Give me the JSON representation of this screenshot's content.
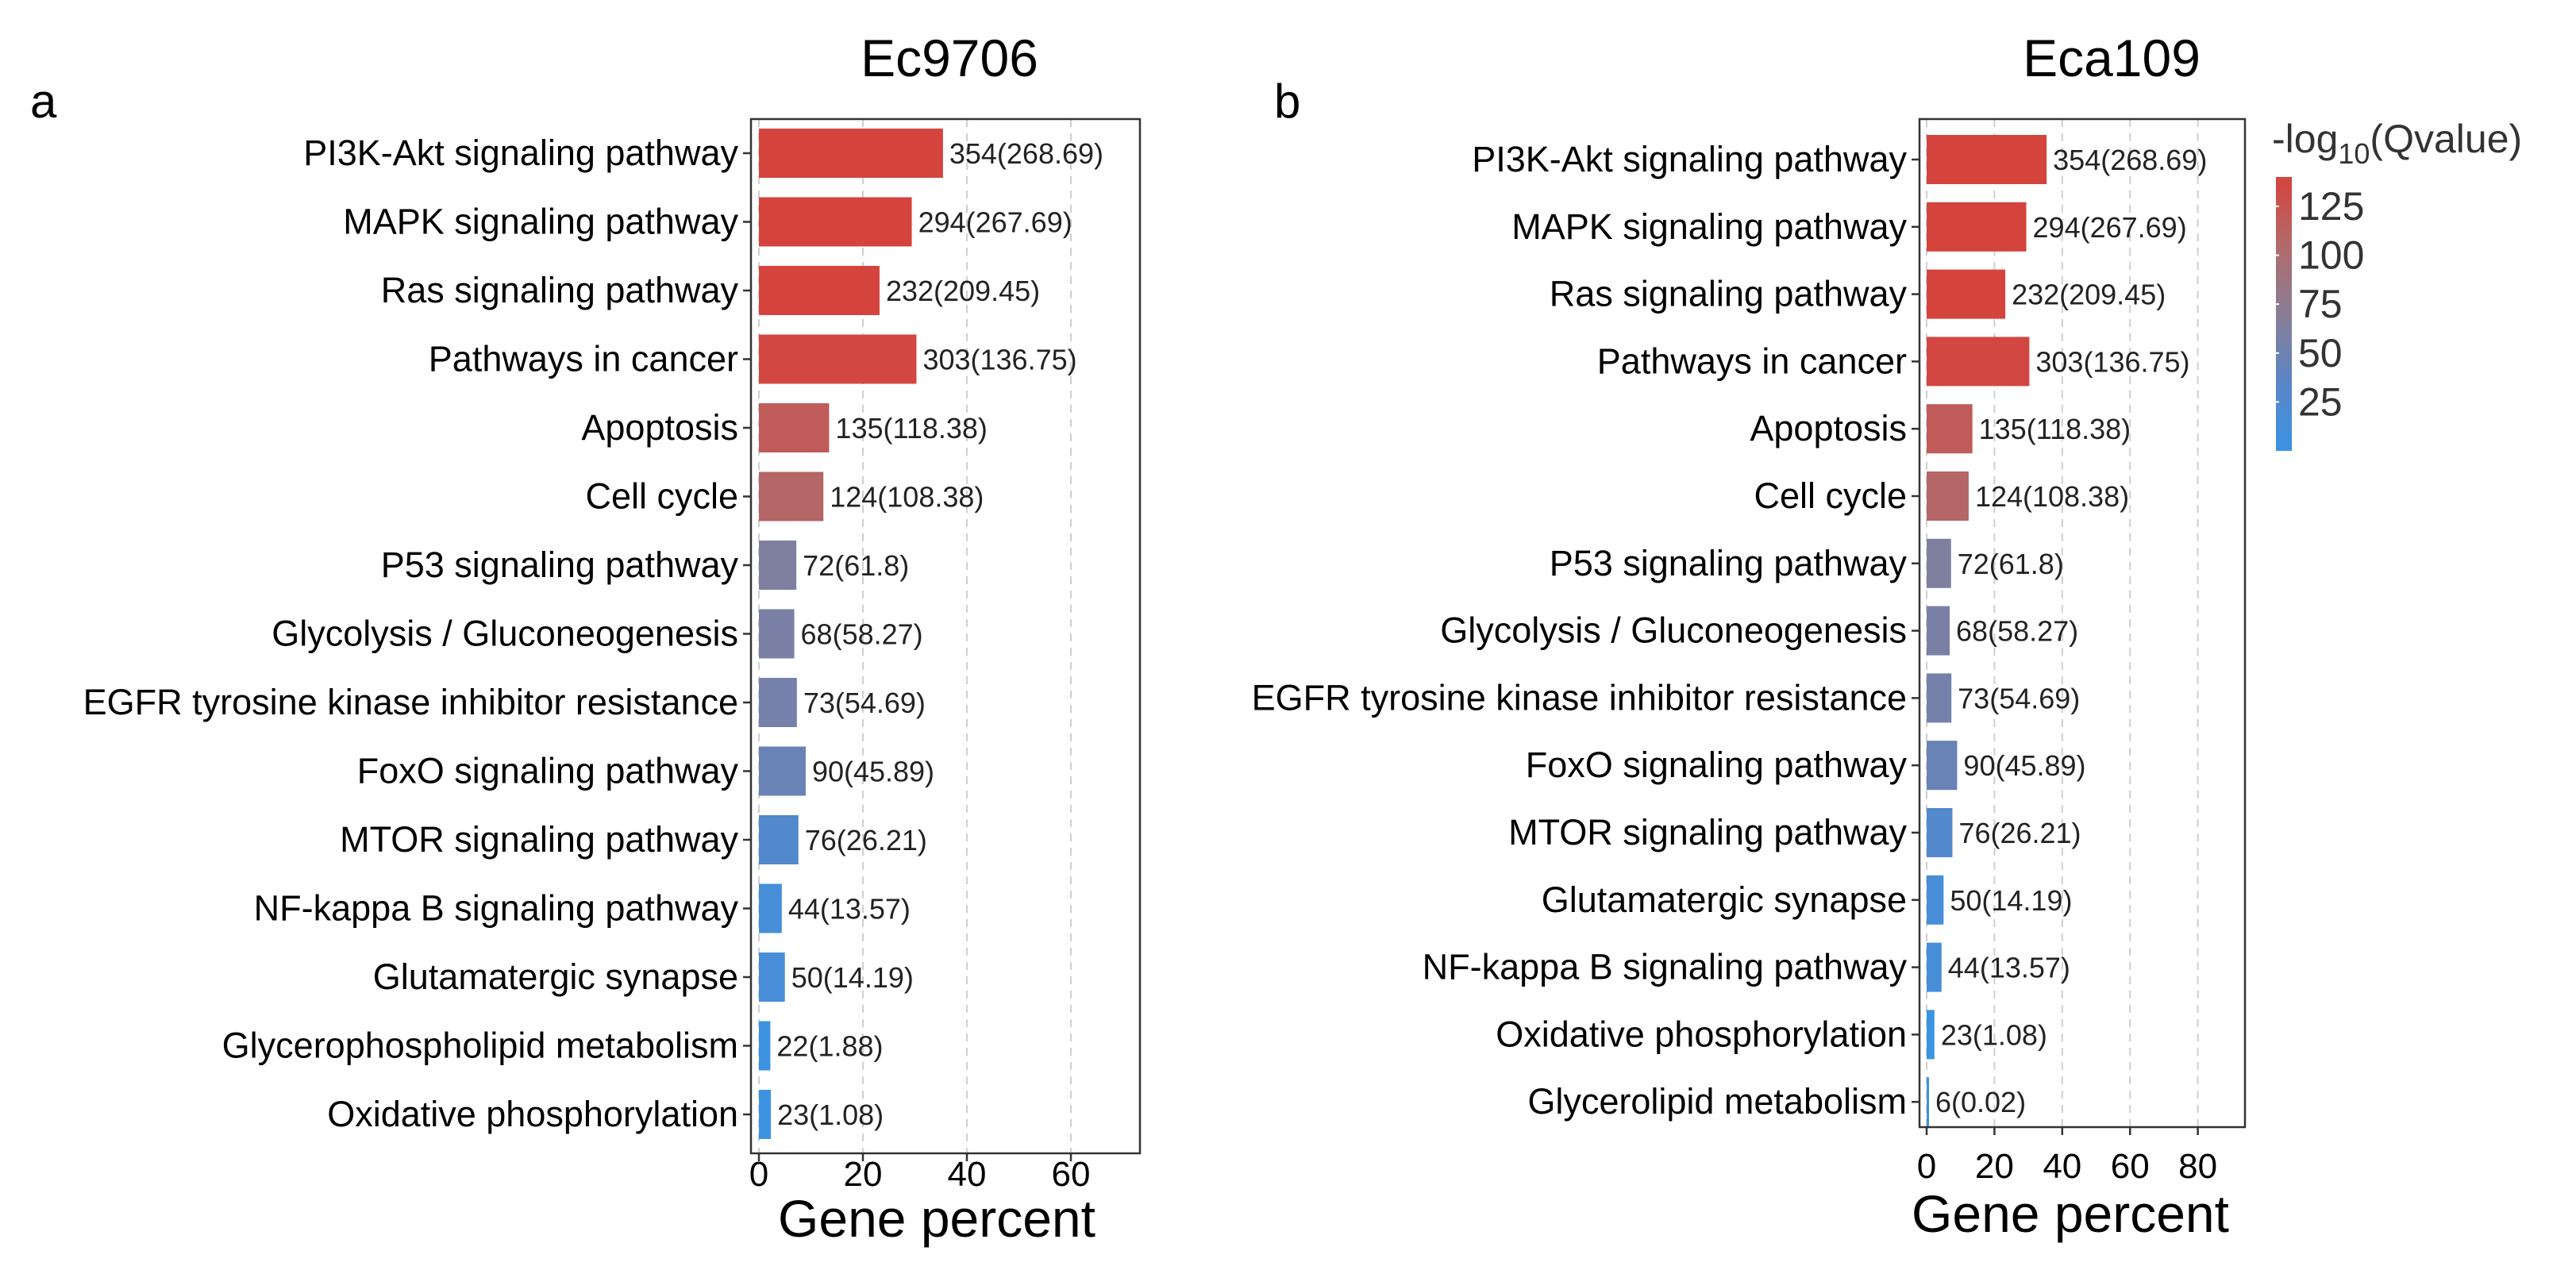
{
  "chart_data": [
    {
      "type": "bar",
      "orientation": "horizontal",
      "panel_label": "a",
      "title": "Ec9706",
      "xlabel": "Gene percent",
      "ylabel": "",
      "xlim": [
        0,
        72
      ],
      "xticks": [
        0,
        20,
        40,
        60
      ],
      "grid": "vertical dashed",
      "categories": [
        "PI3K-Akt signaling pathway",
        "MAPK signaling pathway",
        "Ras signaling pathway",
        "Pathways in cancer",
        "Apoptosis",
        "Cell cycle",
        "P53 signaling pathway",
        "Glycolysis / Gluconeogenesis",
        "EGFR tyrosine kinase inhibitor resistance",
        "FoxO signaling pathway",
        "MTOR signaling pathway",
        "NF-kappa B signaling pathway",
        "Glutamatergic synapse",
        "Glycerophospholipid metabolism",
        "Oxidative phosphorylation"
      ],
      "values": [
        35.4,
        29.4,
        23.2,
        30.3,
        13.5,
        12.4,
        7.2,
        6.8,
        7.3,
        9.0,
        7.6,
        4.4,
        5.0,
        2.2,
        2.3
      ],
      "color_values": [
        268.69,
        267.69,
        209.45,
        136.75,
        118.38,
        108.38,
        61.8,
        58.27,
        54.69,
        45.89,
        26.21,
        13.57,
        14.19,
        1.88,
        1.08
      ],
      "labels": [
        "354(268.69)",
        "294(267.69)",
        "232(209.45)",
        "303(136.75)",
        "135(118.38)",
        "124(108.38)",
        "72(61.8)",
        "68(58.27)",
        "73(54.69)",
        "90(45.89)",
        "76(26.21)",
        "44(13.57)",
        "50(14.19)",
        "22(1.88)",
        "23(1.08)"
      ]
    },
    {
      "type": "bar",
      "orientation": "horizontal",
      "panel_label": "b",
      "title": "Eca109",
      "xlabel": "Gene percent",
      "ylabel": "",
      "xlim": [
        0,
        92
      ],
      "xticks": [
        0,
        20,
        40,
        60,
        80
      ],
      "grid": "vertical dashed",
      "categories": [
        "PI3K-Akt signaling pathway",
        "MAPK signaling pathway",
        "Ras signaling pathway",
        "Pathways in cancer",
        "Apoptosis",
        "Cell cycle",
        "P53 signaling pathway",
        "Glycolysis / Gluconeogenesis",
        "EGFR tyrosine kinase inhibitor resistance",
        "FoxO signaling pathway",
        "MTOR signaling pathway",
        "Glutamatergic synapse",
        "NF-kappa B signaling pathway",
        "Oxidative phosphorylation",
        "Glycerolipid metabolism"
      ],
      "values": [
        35.4,
        29.4,
        23.2,
        30.3,
        13.5,
        12.4,
        7.2,
        6.8,
        7.3,
        9.0,
        7.6,
        5.0,
        4.4,
        2.3,
        0.6
      ],
      "color_values": [
        268.69,
        267.69,
        209.45,
        136.75,
        118.38,
        108.38,
        61.8,
        58.27,
        54.69,
        45.89,
        26.21,
        14.19,
        13.57,
        1.08,
        0.02
      ],
      "labels": [
        "354(268.69)",
        "294(267.69)",
        "232(209.45)",
        "303(136.75)",
        "135(118.38)",
        "124(108.38)",
        "72(61.8)",
        "68(58.27)",
        "73(54.69)",
        "90(45.89)",
        "76(26.21)",
        "50(14.19)",
        "44(13.57)",
        "23(1.08)",
        "6(0.02)"
      ]
    }
  ],
  "legend": {
    "title_prefix": "-log",
    "title_sub": "10",
    "title_suffix": "(Qvalue)",
    "ticks": [
      "125",
      "100",
      "75",
      "50",
      "25"
    ],
    "tick_values": [
      125,
      100,
      75,
      50,
      25
    ],
    "range": [
      0,
      140
    ],
    "colors": [
      "#3b93e3",
      "#5a85c6",
      "#8a7e95",
      "#b26a6a",
      "#d5433d"
    ]
  }
}
